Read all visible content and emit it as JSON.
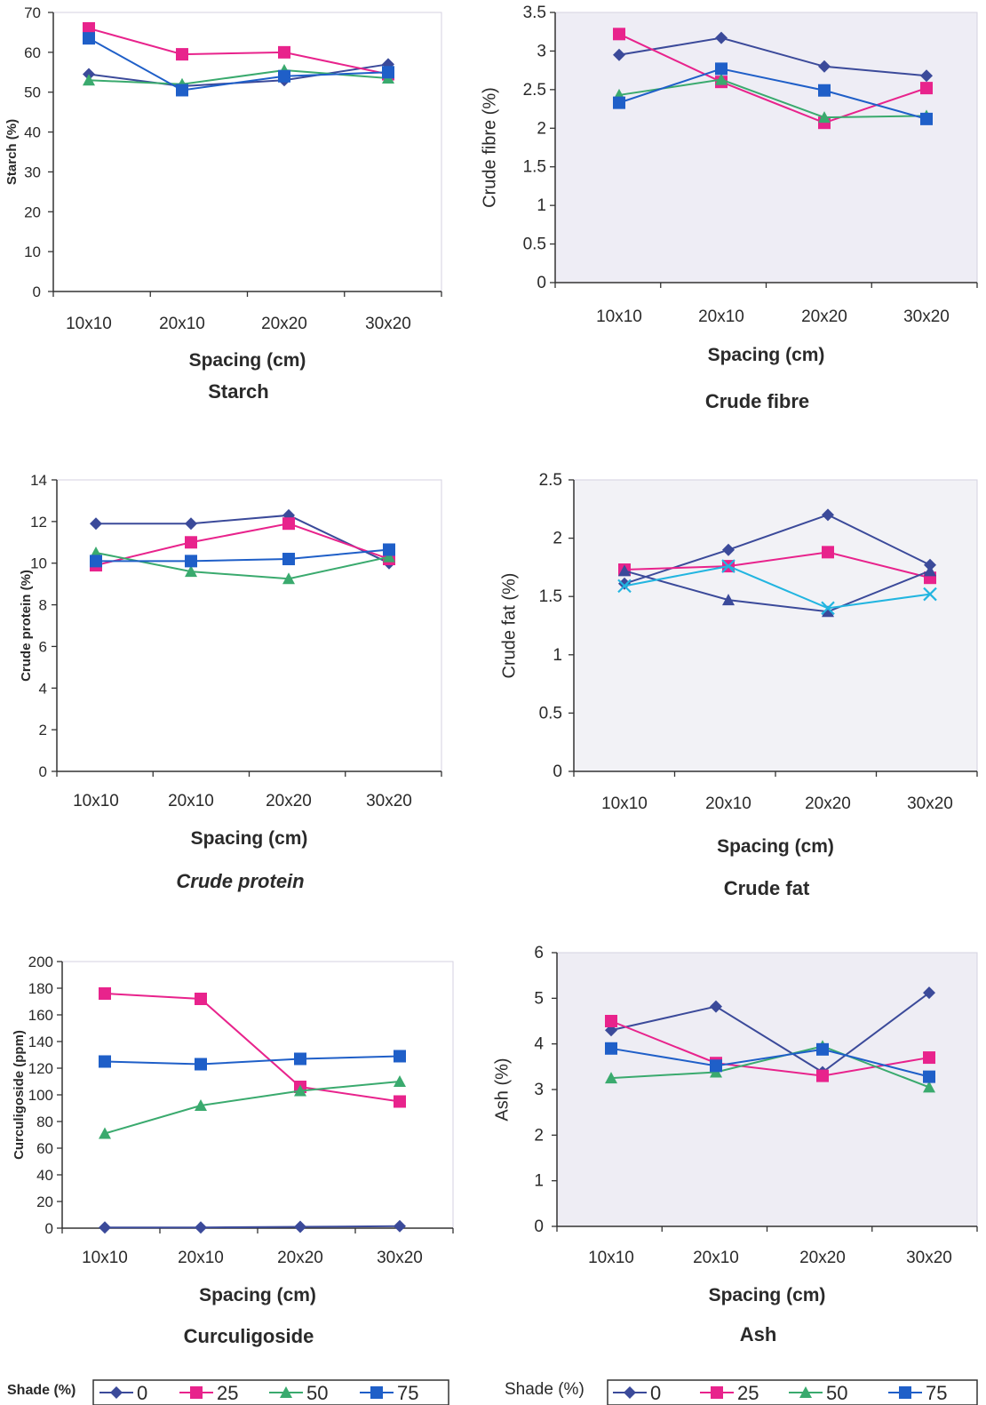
{
  "chart_data": [
    {
      "type": "line",
      "title": "Starch",
      "xlabel": "Spacing (cm)",
      "ylabel": "Starch (%)",
      "categories": [
        "10x10",
        "20x10",
        "20x20",
        "30x20"
      ],
      "yticks": [
        "0",
        "10",
        "20",
        "30",
        "40",
        "50",
        "60",
        "70"
      ],
      "ylim": [
        0,
        70
      ],
      "grid": false,
      "series": [
        {
          "name": "0",
          "values": [
            54.5,
            51.5,
            53,
            57
          ],
          "color": "#3b4a9a",
          "marker": "diamond"
        },
        {
          "name": "25",
          "values": [
            66,
            59.5,
            60,
            54.5
          ],
          "color": "#e8238c",
          "marker": "square"
        },
        {
          "name": "50",
          "values": [
            53,
            52,
            55.5,
            53.5
          ],
          "color": "#3aaa6e",
          "marker": "triangle"
        },
        {
          "name": "75",
          "values": [
            63.5,
            50.5,
            54,
            55
          ],
          "color": "#1f5fc8",
          "marker": "square"
        }
      ]
    },
    {
      "type": "line",
      "title": "Crude fibre",
      "xlabel": "Spacing (cm)",
      "ylabel": "Crude fibre (%)",
      "categories": [
        "10x10",
        "20x10",
        "20x20",
        "30x20"
      ],
      "yticks": [
        "0",
        "0.5",
        "1",
        "1.5",
        "2",
        "2.5",
        "3",
        "3.5"
      ],
      "ylim": [
        0,
        3.5
      ],
      "grid": false,
      "series": [
        {
          "name": "0",
          "values": [
            2.95,
            3.17,
            2.8,
            2.68
          ],
          "color": "#3b4a9a",
          "marker": "diamond"
        },
        {
          "name": "25",
          "values": [
            3.22,
            2.6,
            2.07,
            2.52
          ],
          "color": "#e8238c",
          "marker": "square"
        },
        {
          "name": "50",
          "values": [
            2.43,
            2.63,
            2.14,
            2.16
          ],
          "color": "#3aaa6e",
          "marker": "triangle"
        },
        {
          "name": "75",
          "values": [
            2.33,
            2.77,
            2.49,
            2.12
          ],
          "color": "#1f5fc8",
          "marker": "square"
        }
      ]
    },
    {
      "type": "line",
      "title": "Crude protein",
      "xlabel": "Spacing (cm)",
      "ylabel": "Crude protein (%)",
      "categories": [
        "10x10",
        "20x10",
        "20x20",
        "30x20"
      ],
      "yticks": [
        "0",
        "2",
        "4",
        "6",
        "8",
        "10",
        "12",
        "14"
      ],
      "ylim": [
        0,
        14
      ],
      "grid": false,
      "series": [
        {
          "name": "0",
          "values": [
            11.9,
            11.9,
            12.3,
            10
          ],
          "color": "#3b4a9a",
          "marker": "diamond"
        },
        {
          "name": "25",
          "values": [
            9.9,
            11,
            11.9,
            10.2
          ],
          "color": "#e8238c",
          "marker": "square"
        },
        {
          "name": "50",
          "values": [
            10.5,
            9.6,
            9.25,
            10.3
          ],
          "color": "#3aaa6e",
          "marker": "triangle"
        },
        {
          "name": "75",
          "values": [
            10.1,
            10.1,
            10.2,
            10.65
          ],
          "color": "#1f5fc8",
          "marker": "square"
        }
      ]
    },
    {
      "type": "line",
      "title": "Crude fat",
      "xlabel": "Spacing (cm)",
      "ylabel": "Crude fat (%)",
      "categories": [
        "10x10",
        "20x10",
        "20x20",
        "30x20"
      ],
      "yticks": [
        "0",
        "0.5",
        "1",
        "1.5",
        "2",
        "2.5"
      ],
      "ylim": [
        0,
        2.5
      ],
      "grid": false,
      "series": [
        {
          "name": "0",
          "values": [
            1.61,
            1.9,
            2.2,
            1.77
          ],
          "color": "#3b4a9a",
          "marker": "diamond"
        },
        {
          "name": "25",
          "values": [
            1.73,
            1.76,
            1.88,
            1.66
          ],
          "color": "#e8238c",
          "marker": "square"
        },
        {
          "name": "50",
          "values": [
            1.72,
            1.47,
            1.37,
            1.72
          ],
          "color": "#3b4a9a",
          "marker": "triangle"
        },
        {
          "name": "75",
          "values": [
            1.59,
            1.76,
            1.4,
            1.52
          ],
          "color": "#22b5e0",
          "marker": "cross"
        }
      ]
    },
    {
      "type": "line",
      "title": "Curculigoside",
      "xlabel": "Spacing (cm)",
      "ylabel": "Curculigoside (ppm)",
      "categories": [
        "10x10",
        "20x10",
        "20x20",
        "30x20"
      ],
      "yticks": [
        "0",
        "20",
        "40",
        "60",
        "80",
        "100",
        "120",
        "140",
        "160",
        "180",
        "200"
      ],
      "ylim": [
        0,
        200
      ],
      "grid": false,
      "series": [
        {
          "name": "0",
          "values": [
            0.5,
            0.5,
            1,
            1.5
          ],
          "color": "#3b4a9a",
          "marker": "diamond"
        },
        {
          "name": "25",
          "values": [
            176,
            172,
            106,
            95
          ],
          "color": "#e8238c",
          "marker": "square"
        },
        {
          "name": "50",
          "values": [
            71,
            92,
            103,
            110
          ],
          "color": "#3aaa6e",
          "marker": "triangle"
        },
        {
          "name": "75",
          "values": [
            125,
            123,
            127,
            129
          ],
          "color": "#1f5fc8",
          "marker": "square"
        }
      ]
    },
    {
      "type": "line",
      "title": "Ash",
      "xlabel": "Spacing (cm)",
      "ylabel": "Ash (%)",
      "categories": [
        "10x10",
        "20x10",
        "20x20",
        "30x20"
      ],
      "yticks": [
        "0",
        "1",
        "2",
        "3",
        "4",
        "5",
        "6"
      ],
      "ylim": [
        0,
        6
      ],
      "grid": false,
      "series": [
        {
          "name": "0",
          "values": [
            4.3,
            4.82,
            3.38,
            5.12
          ],
          "color": "#3b4a9a",
          "marker": "diamond"
        },
        {
          "name": "25",
          "values": [
            4.5,
            3.58,
            3.3,
            3.7
          ],
          "color": "#e8238c",
          "marker": "square"
        },
        {
          "name": "50",
          "values": [
            3.25,
            3.38,
            3.95,
            3.05
          ],
          "color": "#3aaa6e",
          "marker": "triangle"
        },
        {
          "name": "75",
          "values": [
            3.9,
            3.52,
            3.88,
            3.28
          ],
          "color": "#1f5fc8",
          "marker": "square"
        }
      ]
    }
  ],
  "legends": [
    {
      "title": "Shade (%)",
      "items": [
        "0",
        "25",
        "50",
        "75"
      ]
    },
    {
      "title": "Shade (%)",
      "items": [
        "0",
        "25",
        "50",
        "75"
      ]
    }
  ],
  "legend_colors": [
    "#3b4a9a",
    "#e8238c",
    "#3aaa6e",
    "#1f5fc8"
  ],
  "legend_markers": [
    "diamond",
    "square",
    "triangle",
    "square"
  ]
}
